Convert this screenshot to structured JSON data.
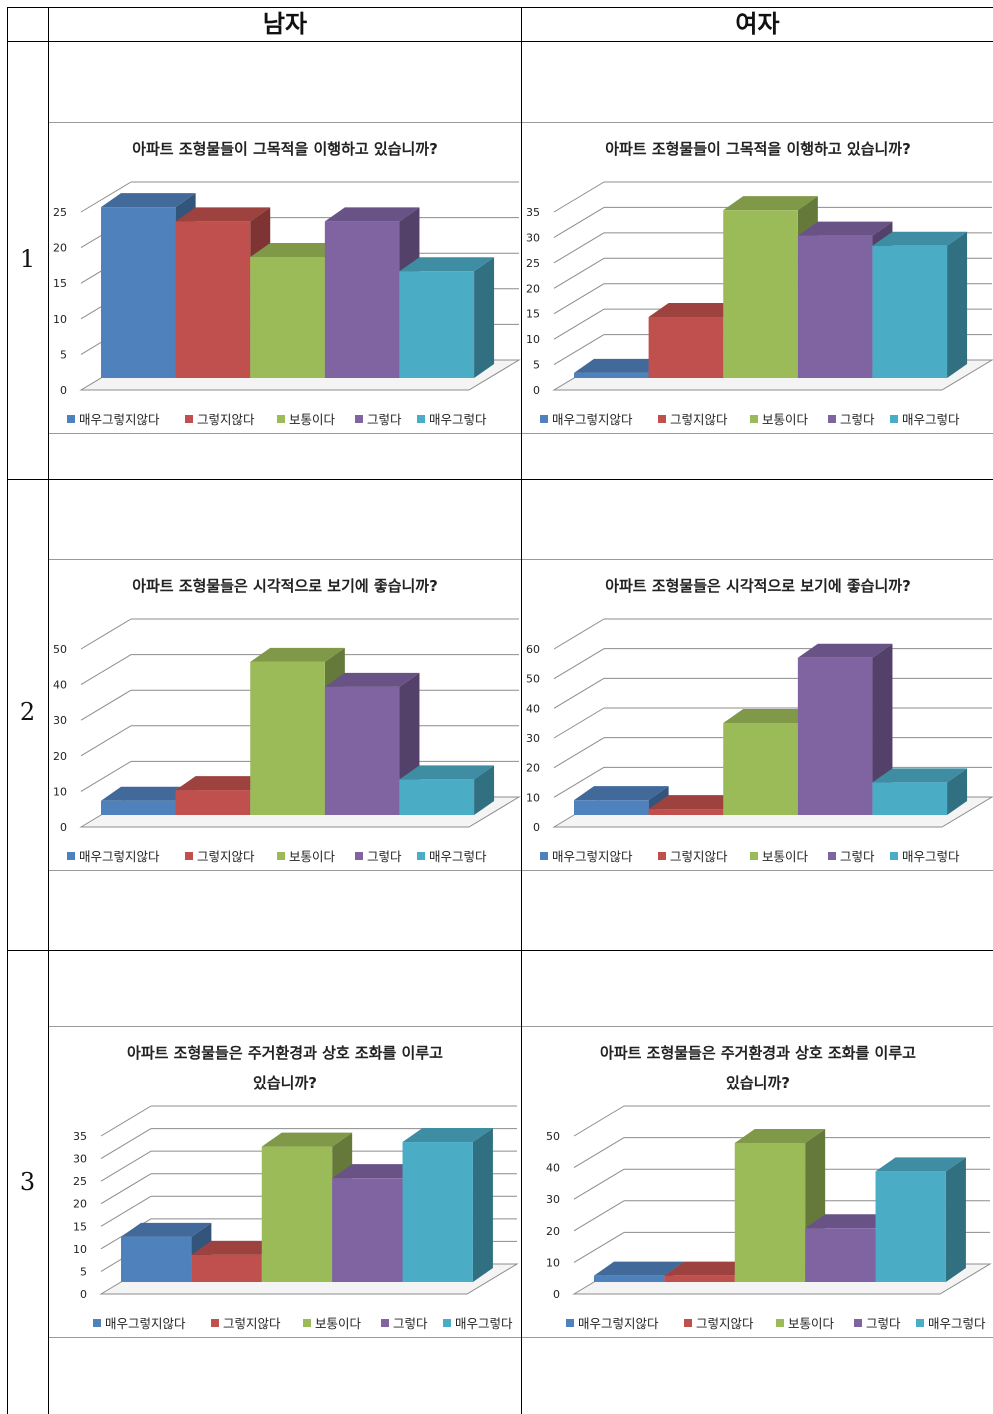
{
  "headers": {
    "male": "남자",
    "female": "여자"
  },
  "rows": [
    "1",
    "2",
    "3"
  ],
  "legend_categories": [
    "매우그렇지않다",
    "그렇지않다",
    "보통이다",
    "그렇다",
    "매우그렇다"
  ],
  "colors": [
    "#4f81bd",
    "#c0504d",
    "#9bbb59",
    "#8064a2",
    "#4bacc6"
  ],
  "chart_data": [
    {
      "id": "q1-male",
      "type": "bar",
      "title": "아파트 조형물들이 그목적을 이행하고 있습니까?",
      "categories": [
        "매우그렇지않다",
        "그렇지않다",
        "보통이다",
        "그렇다",
        "매우그렇다"
      ],
      "values": [
        24,
        22,
        17,
        22,
        15
      ],
      "ylim": [
        0,
        25
      ],
      "ticks": [
        0,
        5,
        10,
        15,
        20,
        25
      ]
    },
    {
      "id": "q1-female",
      "type": "bar",
      "title": "아파트 조형물들이 그목적을 이행하고 있습니까?",
      "categories": [
        "매우그렇지않다",
        "그렇지않다",
        "보통이다",
        "그렇다",
        "매우그렇다"
      ],
      "values": [
        1,
        12,
        33,
        28,
        26
      ],
      "ylim": [
        0,
        35
      ],
      "ticks": [
        0,
        5,
        10,
        15,
        20,
        25,
        30,
        35
      ]
    },
    {
      "id": "q2-male",
      "type": "bar",
      "title": "아파트 조형물들은 시각적으로 보기에 좋습니까?",
      "categories": [
        "매우그렇지않다",
        "그렇지않다",
        "보통이다",
        "그렇다",
        "매우그렇다"
      ],
      "values": [
        4,
        7,
        43,
        36,
        10
      ],
      "ylim": [
        0,
        50
      ],
      "ticks": [
        0,
        10,
        20,
        30,
        40,
        50
      ]
    },
    {
      "id": "q2-female",
      "type": "bar",
      "title": "아파트 조형물들은 시각적으로 보기에 좋습니까?",
      "categories": [
        "매우그렇지않다",
        "그렇지않다",
        "보통이다",
        "그렇다",
        "매우그렇다"
      ],
      "values": [
        5,
        2,
        31,
        53,
        11
      ],
      "ylim": [
        0,
        60
      ],
      "ticks": [
        0,
        10,
        20,
        30,
        40,
        50,
        60
      ]
    },
    {
      "id": "q3-male",
      "type": "bar",
      "title": "아파트 조형물들은 주거환경과 상호 조화를 이루고 있습니까?",
      "title_lines": [
        "아파트 조형물들은 주거환경과 상호 조화를 이루고",
        "있습니까?"
      ],
      "categories": [
        "매우그렇지않다",
        "그렇지않다",
        "보통이다",
        "그렇다",
        "매우그렇다"
      ],
      "values": [
        10,
        6,
        30,
        23,
        31
      ],
      "ylim": [
        0,
        35
      ],
      "ticks": [
        0,
        5,
        10,
        15,
        20,
        25,
        30,
        35
      ]
    },
    {
      "id": "q3-female",
      "type": "bar",
      "title": "아파트 조형물들은 주거환경과 상호 조화를 이루고 있습니까?",
      "title_lines": [
        "아파트 조형물들은 주거환경과 상호 조화를 이루고",
        "있습니까?"
      ],
      "categories": [
        "매우그렇지않다",
        "그렇지않다",
        "보통이다",
        "그렇다",
        "매우그렇다"
      ],
      "values": [
        2,
        2,
        44,
        17,
        35
      ],
      "ylim": [
        0,
        50
      ],
      "ticks": [
        0,
        10,
        20,
        30,
        40,
        50
      ]
    }
  ]
}
